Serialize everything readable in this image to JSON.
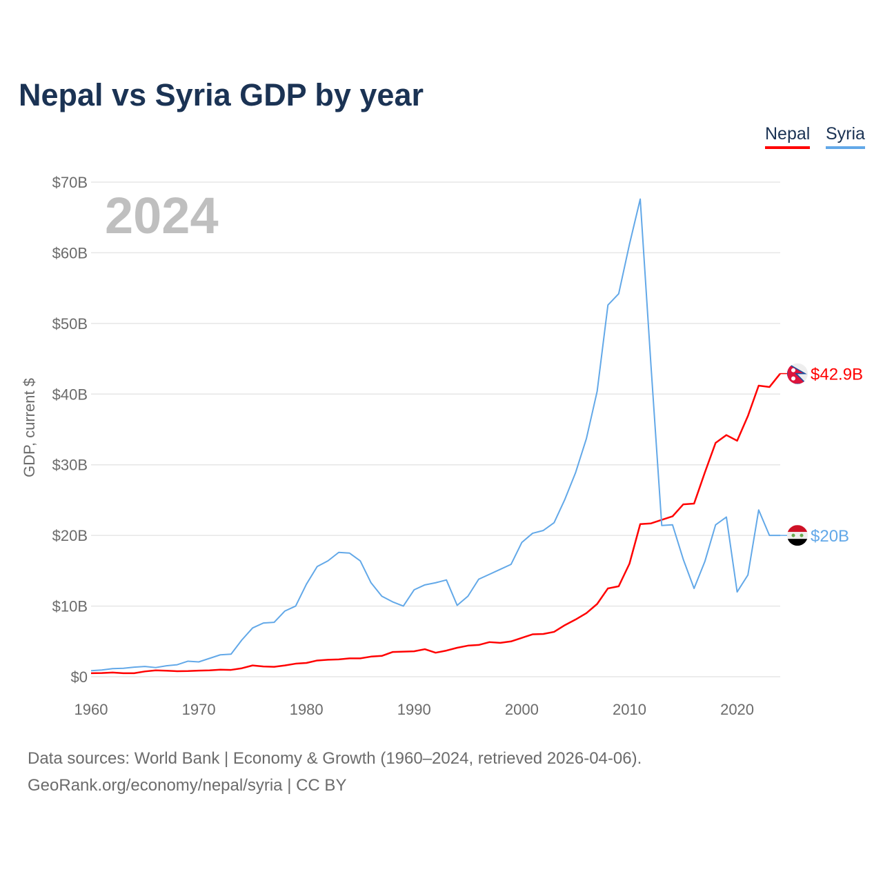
{
  "chart_data": {
    "type": "line",
    "title": "Nepal vs Syria GDP by year",
    "ylabel": "GDP, current $",
    "xlabel": "",
    "year_watermark": "2024",
    "xlim": [
      1960,
      2024
    ],
    "ylim": [
      0,
      70
    ],
    "x_ticks": [
      "1960",
      "1970",
      "1980",
      "1990",
      "2000",
      "2010",
      "2020"
    ],
    "y_ticks": [
      "$0",
      "$10B",
      "$20B",
      "$30B",
      "$40B",
      "$50B",
      "$60B",
      "$70B"
    ],
    "grid": true,
    "legend_position": "top-right",
    "x": [
      1960,
      1961,
      1962,
      1963,
      1964,
      1965,
      1966,
      1967,
      1968,
      1969,
      1970,
      1971,
      1972,
      1973,
      1974,
      1975,
      1976,
      1977,
      1978,
      1979,
      1980,
      1981,
      1982,
      1983,
      1984,
      1985,
      1986,
      1987,
      1988,
      1989,
      1990,
      1991,
      1992,
      1993,
      1994,
      1995,
      1996,
      1997,
      1998,
      1999,
      2000,
      2001,
      2002,
      2003,
      2004,
      2005,
      2006,
      2007,
      2008,
      2009,
      2010,
      2011,
      2012,
      2013,
      2014,
      2015,
      2016,
      2017,
      2018,
      2019,
      2020,
      2021,
      2022,
      2023,
      2024
    ],
    "series": [
      {
        "name": "Nepal",
        "color": "#ff0000",
        "end_label": "$42.9B",
        "flag": "nepal-flag",
        "values": [
          0.5,
          0.53,
          0.6,
          0.5,
          0.5,
          0.75,
          0.9,
          0.85,
          0.78,
          0.8,
          0.87,
          0.9,
          1.0,
          0.97,
          1.2,
          1.6,
          1.45,
          1.4,
          1.6,
          1.85,
          1.95,
          2.3,
          2.4,
          2.45,
          2.6,
          2.6,
          2.85,
          2.95,
          3.5,
          3.55,
          3.6,
          3.9,
          3.4,
          3.7,
          4.1,
          4.4,
          4.5,
          4.9,
          4.8,
          5.0,
          5.5,
          6.0,
          6.05,
          6.35,
          7.3,
          8.1,
          9.0,
          10.3,
          12.5,
          12.8,
          16.0,
          21.6,
          21.7,
          22.2,
          22.7,
          24.4,
          24.5,
          28.9,
          33.1,
          34.2,
          33.4,
          36.9,
          41.2,
          41.0,
          42.9
        ]
      },
      {
        "name": "Syria",
        "color": "#62a8e8",
        "end_label": "$20B",
        "flag": "syria-flag",
        "values": [
          0.86,
          0.95,
          1.15,
          1.2,
          1.35,
          1.45,
          1.3,
          1.55,
          1.7,
          2.2,
          2.1,
          2.6,
          3.1,
          3.2,
          5.2,
          6.9,
          7.6,
          7.7,
          9.3,
          10.0,
          13.1,
          15.6,
          16.4,
          17.6,
          17.5,
          16.4,
          13.3,
          11.4,
          10.6,
          10.0,
          12.3,
          13.0,
          13.3,
          13.7,
          10.1,
          11.4,
          13.8,
          14.5,
          15.2,
          15.9,
          19.0,
          20.3,
          20.7,
          21.8,
          25.1,
          28.9,
          33.7,
          40.4,
          52.6,
          54.2,
          61.2,
          67.6,
          44.0,
          21.4,
          21.5,
          16.6,
          12.5,
          16.3,
          21.5,
          22.6,
          12.0,
          14.4,
          23.6,
          20.0,
          20.0
        ]
      }
    ]
  },
  "footer": {
    "line1": "Data sources: World Bank | Economy & Growth (1960–2024, retrieved 2026-04-06).",
    "line2": "GeoRank.org/economy/nepal/syria | CC BY"
  }
}
